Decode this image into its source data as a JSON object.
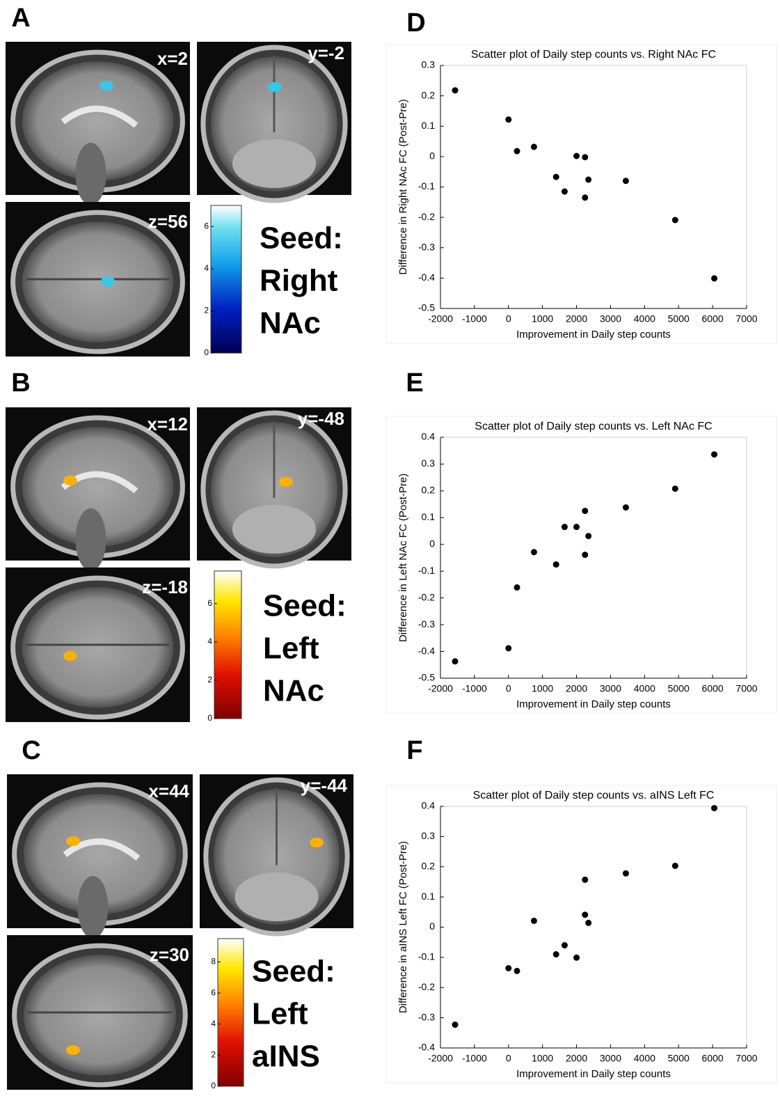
{
  "panels": [
    {
      "label": "A",
      "slices": [
        "x=2",
        "y=-2",
        "z=56"
      ],
      "colorbar_lim": [
        0,
        7
      ],
      "colorbar_ticks": [
        0,
        2,
        4,
        6
      ],
      "seed": [
        "Seed:",
        "Right",
        "NAc"
      ]
    },
    {
      "label": "B",
      "slices": [
        "x=12",
        "y=-48",
        "z=-18"
      ],
      "colorbar_lim": [
        0,
        7.7
      ],
      "colorbar_ticks": [
        0,
        2,
        4,
        6
      ],
      "seed": [
        "Seed:",
        "Left",
        "NAc"
      ]
    },
    {
      "label": "C",
      "slices": [
        "x=44",
        "y=-44",
        "z=30"
      ],
      "colorbar_lim": [
        0,
        9.5
      ],
      "colorbar_ticks": [
        0,
        2,
        4,
        6,
        8
      ],
      "seed": [
        "Seed:",
        "Left",
        "aINS"
      ]
    }
  ],
  "chart_data": [
    {
      "type": "scatter",
      "panel_label": "D",
      "title": "Scatter plot of Daily step counts vs. Right NAc FC",
      "x_label": "Improvement in Daily step counts",
      "y_label": "Difference in Right NAc FC (Post-Pre)",
      "x": [
        -1570,
        0,
        250,
        750,
        1400,
        1650,
        2000,
        2250,
        2350,
        2250,
        3450,
        4900,
        6050
      ],
      "values": [
        0.218,
        0.122,
        0.018,
        0.032,
        -0.067,
        -0.115,
        0.002,
        -0.002,
        -0.076,
        -0.135,
        -0.08,
        -0.209,
        -0.401
      ],
      "color": "#000000",
      "xlim": [
        -2000,
        7000
      ],
      "xticks": [
        -2000,
        -1000,
        0,
        1000,
        2000,
        3000,
        4000,
        5000,
        6000,
        7000
      ],
      "ylim": [
        -0.5,
        0.3
      ],
      "yticks": [
        -0.5,
        -0.4,
        -0.3,
        -0.2,
        -0.1,
        0,
        0.1,
        0.2,
        0.3
      ]
    },
    {
      "type": "scatter",
      "panel_label": "E",
      "title": "Scatter plot of Daily step counts vs. Left NAc FC",
      "x_label": "Improvement in Daily step counts",
      "y_label": "Difference in Left NAc FC (Post-Pre)",
      "x": [
        -1570,
        0,
        250,
        750,
        1400,
        1650,
        2000,
        2250,
        2250,
        2350,
        3450,
        4900,
        6050
      ],
      "values": [
        -0.437,
        -0.388,
        -0.161,
        -0.029,
        -0.075,
        0.065,
        0.065,
        0.125,
        -0.039,
        0.031,
        0.138,
        0.208,
        0.336
      ],
      "color": "#000000",
      "xlim": [
        -2000,
        7000
      ],
      "xticks": [
        -2000,
        -1000,
        0,
        1000,
        2000,
        3000,
        4000,
        5000,
        6000,
        7000
      ],
      "ylim": [
        -0.5,
        0.4
      ],
      "yticks": [
        -0.5,
        -0.4,
        -0.3,
        -0.2,
        -0.1,
        0,
        0.1,
        0.2,
        0.3,
        0.4
      ]
    },
    {
      "type": "scatter",
      "panel_label": "F",
      "title": "Scatter plot of Daily step counts vs. aINS Left FC",
      "x_label": "Improvement in Daily step counts",
      "y_label": "Difference in aINS Left FC (Post-Pre)",
      "x": [
        -1570,
        0,
        250,
        750,
        1400,
        1650,
        2000,
        2250,
        2250,
        2350,
        3450,
        4900,
        6050
      ],
      "values": [
        -0.323,
        -0.136,
        -0.145,
        0.021,
        -0.09,
        -0.06,
        -0.101,
        0.157,
        0.041,
        0.014,
        0.178,
        0.203,
        0.394
      ],
      "color": "#000000",
      "xlim": [
        -2000,
        7000
      ],
      "xticks": [
        -2000,
        -1000,
        0,
        1000,
        2000,
        3000,
        4000,
        5000,
        6000,
        7000
      ],
      "ylim": [
        -0.4,
        0.4
      ],
      "yticks": [
        -0.4,
        -0.3,
        -0.2,
        -0.1,
        0,
        0.1,
        0.2,
        0.3,
        0.4
      ]
    }
  ]
}
